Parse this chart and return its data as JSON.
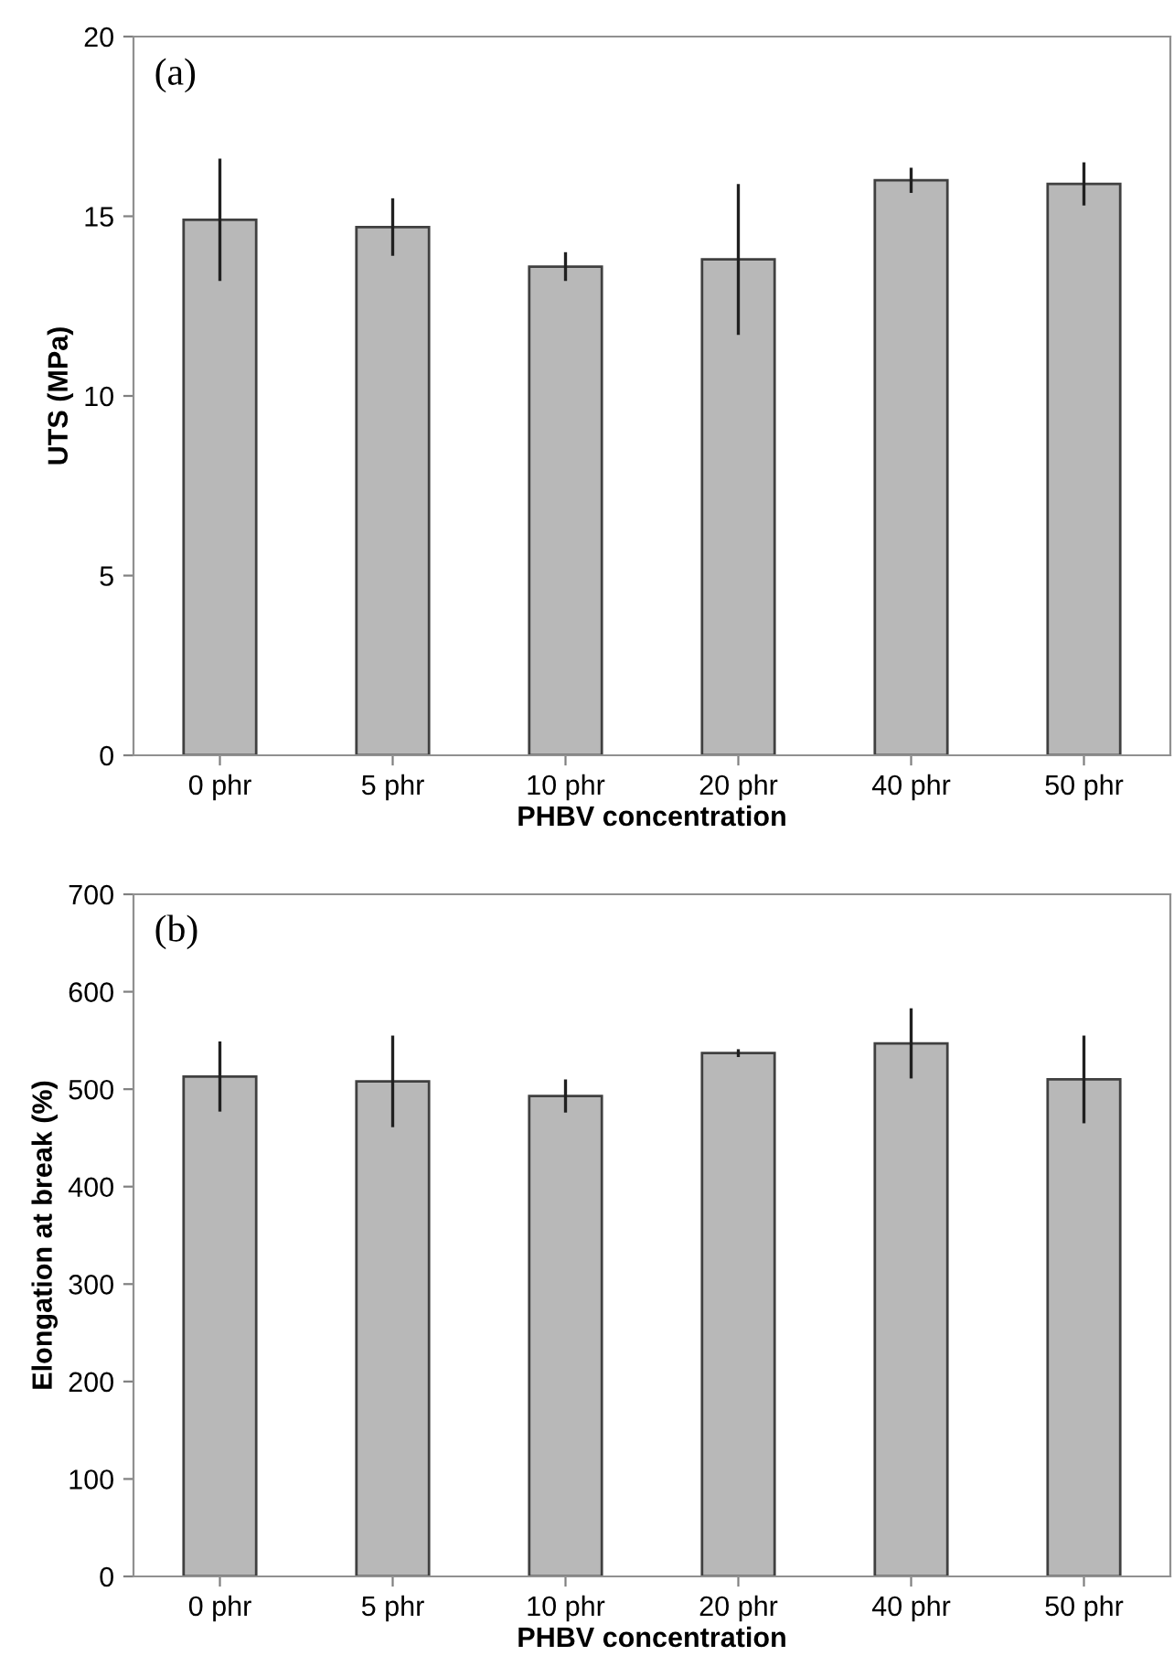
{
  "chart_data": [
    {
      "type": "bar",
      "categories": [
        "0 phr",
        "5 phr",
        "10 phr",
        "20 phr",
        "40 phr",
        "50 phr"
      ],
      "values": [
        14.9,
        14.7,
        13.6,
        13.8,
        16.0,
        15.9
      ],
      "errors": [
        1.7,
        0.8,
        0.4,
        2.1,
        0.35,
        0.6
      ],
      "color": "#b8b8b8",
      "xlabel": "PHBV concentration",
      "ylabel": "UTS (MPa)",
      "ylim": [
        0,
        20
      ],
      "yticks": [
        0,
        5,
        10,
        15,
        20
      ],
      "annotations": [
        "(a)"
      ],
      "grid": false,
      "legend": false
    },
    {
      "type": "bar",
      "categories": [
        "0 phr",
        "5 phr",
        "10 phr",
        "20 phr",
        "40 phr",
        "50 phr"
      ],
      "values": [
        513,
        508,
        493,
        537,
        547,
        510
      ],
      "errors": [
        36,
        47,
        17,
        4,
        36,
        45
      ],
      "color": "#b8b8b8",
      "xlabel": "PHBV concentration",
      "ylabel": "Elongation at break (%)",
      "ylim": [
        0,
        700
      ],
      "yticks": [
        0,
        100,
        200,
        300,
        400,
        500,
        600,
        700
      ],
      "annotations": [
        "(b)"
      ],
      "grid": false,
      "legend": false
    }
  ]
}
